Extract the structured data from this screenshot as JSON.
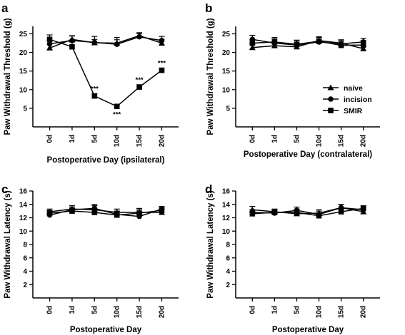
{
  "chart_data": [
    {
      "panel": "a",
      "type": "line",
      "xlabel": "Postoperative Day (ipsilateral)",
      "ylabel": "Paw Withdrawal Threshold (g)",
      "categories": [
        "0d",
        "1d",
        "5d",
        "10d",
        "15d",
        "20d"
      ],
      "ylim": [
        0,
        27
      ],
      "yticks": [
        5,
        10,
        15,
        20,
        25
      ],
      "series": [
        {
          "name": "naive",
          "marker": "triangle",
          "values": [
            21.2,
            23.5,
            22.6,
            22.5,
            24.5,
            22.5
          ],
          "errors": [
            1.2,
            1.0,
            0.9,
            0.9,
            0.8,
            0.9
          ]
        },
        {
          "name": "incision",
          "marker": "circle",
          "values": [
            22.3,
            23.2,
            22.7,
            22.2,
            24.2,
            23.2
          ],
          "errors": [
            1.0,
            1.2,
            1.6,
            1.8,
            0.9,
            1.1
          ]
        },
        {
          "name": "SMIR",
          "marker": "square",
          "values": [
            23.5,
            21.5,
            8.3,
            5.5,
            10.7,
            15.2
          ],
          "errors": [
            1.2,
            1.3,
            0.6,
            0.4,
            0.6,
            0.6
          ]
        }
      ],
      "annotations": [
        {
          "category": "5d",
          "text": "***"
        },
        {
          "category": "10d",
          "text": "***"
        },
        {
          "category": "15d",
          "text": "***"
        },
        {
          "category": "20d",
          "text": "***"
        }
      ]
    },
    {
      "panel": "b",
      "type": "line",
      "xlabel": "Postoperative Day (contralateral)",
      "ylabel": "Paw Withdrawal Threshold (g)",
      "categories": [
        "0d",
        "1d",
        "5d",
        "10d",
        "15d",
        "20d"
      ],
      "ylim": [
        0,
        27
      ],
      "yticks": [
        5,
        10,
        15,
        20,
        25
      ],
      "legend": {
        "position": "right",
        "entries": [
          "naive",
          "incision",
          "SMIR"
        ]
      },
      "series": [
        {
          "name": "naive",
          "marker": "triangle",
          "values": [
            21.3,
            21.8,
            21.5,
            23.2,
            22.5,
            21.0
          ],
          "errors": [
            0.9,
            0.9,
            0.9,
            1.0,
            0.9,
            0.9
          ]
        },
        {
          "name": "incision",
          "marker": "circle",
          "values": [
            23.5,
            22.5,
            22.0,
            22.8,
            22.3,
            22.8
          ],
          "errors": [
            1.1,
            1.1,
            1.2,
            1.2,
            1.0,
            1.0
          ]
        },
        {
          "name": "SMIR",
          "marker": "square",
          "values": [
            22.5,
            22.8,
            22.2,
            23.0,
            21.9,
            22.0
          ],
          "errors": [
            1.0,
            1.2,
            1.1,
            1.0,
            1.0,
            1.2
          ]
        }
      ]
    },
    {
      "panel": "c",
      "type": "line",
      "xlabel": "Postoperative Day",
      "ylabel": "Paw Withdrawal Latency (s)",
      "categories": [
        "0d",
        "1d",
        "5d",
        "10d",
        "15d",
        "20d"
      ],
      "ylim": [
        0,
        16
      ],
      "yticks": [
        2,
        4,
        6,
        8,
        10,
        12,
        14,
        16
      ],
      "series": [
        {
          "name": "naive",
          "marker": "triangle",
          "values": [
            12.9,
            13.3,
            13.2,
            12.8,
            12.8,
            12.8
          ],
          "errors": [
            0.4,
            0.5,
            0.6,
            0.5,
            0.6,
            0.5
          ]
        },
        {
          "name": "incision",
          "marker": "circle",
          "values": [
            12.4,
            13.2,
            13.4,
            12.5,
            12.2,
            13.3
          ],
          "errors": [
            0.4,
            0.4,
            0.6,
            0.5,
            0.6,
            0.4
          ]
        },
        {
          "name": "SMIR",
          "marker": "square",
          "values": [
            12.7,
            13.0,
            12.8,
            12.4,
            12.7,
            13.1
          ],
          "errors": [
            0.4,
            0.4,
            0.6,
            0.5,
            0.6,
            0.4
          ]
        }
      ]
    },
    {
      "panel": "d",
      "type": "line",
      "xlabel": "Postoperative Day",
      "ylabel": "Paw Withdrawal Latency (s)",
      "categories": [
        "0d",
        "1d",
        "5d",
        "10d",
        "15d",
        "20d"
      ],
      "ylim": [
        0,
        16
      ],
      "yticks": [
        2,
        4,
        6,
        8,
        10,
        12,
        14,
        16
      ],
      "series": [
        {
          "name": "naive",
          "marker": "triangle",
          "values": [
            13.2,
            12.9,
            12.6,
            12.7,
            13.5,
            12.9
          ],
          "errors": [
            0.5,
            0.4,
            0.5,
            0.5,
            0.5,
            0.4
          ]
        },
        {
          "name": "incision",
          "marker": "circle",
          "values": [
            12.8,
            12.7,
            13.1,
            12.5,
            13.5,
            13.2
          ],
          "errors": [
            0.4,
            0.4,
            0.5,
            0.5,
            0.5,
            0.4
          ]
        },
        {
          "name": "SMIR",
          "marker": "square",
          "values": [
            12.6,
            12.8,
            12.8,
            12.3,
            12.9,
            13.4
          ],
          "errors": [
            0.4,
            0.4,
            0.5,
            0.4,
            0.5,
            0.4
          ]
        }
      ]
    }
  ]
}
